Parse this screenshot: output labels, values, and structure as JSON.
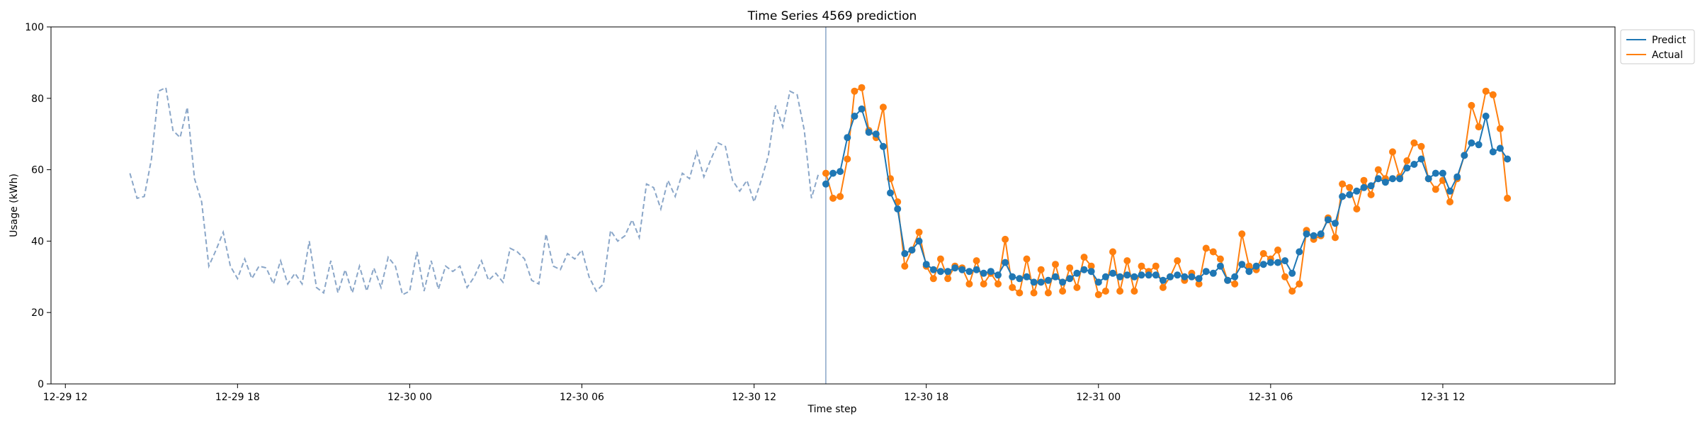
{
  "chart_data": {
    "type": "line",
    "title": "Time Series 4569 prediction",
    "xlabel": "Time step",
    "ylabel": "Usage (kWh)",
    "ylim": [
      0,
      100
    ],
    "y_ticks": [
      0,
      20,
      40,
      60,
      80,
      100
    ],
    "x_range": [
      "2023-12-29T11:30",
      "2023-12-31T18:00"
    ],
    "x_ticks": [
      {
        "t": "2023-12-29T12:00",
        "label": "12-29 12"
      },
      {
        "t": "2023-12-29T18:00",
        "label": "12-29 18"
      },
      {
        "t": "2023-12-30T00:00",
        "label": "12-30 00"
      },
      {
        "t": "2023-12-30T06:00",
        "label": "12-30 06"
      },
      {
        "t": "2023-12-30T12:00",
        "label": "12-30 12"
      },
      {
        "t": "2023-12-30T18:00",
        "label": "12-30 18"
      },
      {
        "t": "2023-12-31T00:00",
        "label": "12-31 00"
      },
      {
        "t": "2023-12-31T06:00",
        "label": "12-31 06"
      },
      {
        "t": "2023-12-31T12:00",
        "label": "12-31 12"
      }
    ],
    "forecast_start": "2023-12-30T14:30",
    "step_minutes": 15,
    "legend_position": "top-right, outside plot",
    "colors": {
      "history": "#8aa6c8",
      "predict": "#1f77b4",
      "actual": "#ff7f0e",
      "forecast_line": "#8aa6c8"
    },
    "series": [
      {
        "start": "2023-12-29T14:15",
        "style": "dashed",
        "values": [
          59,
          52,
          52.5,
          63,
          82,
          83,
          71,
          69,
          77.5,
          57.5,
          51,
          33,
          37.5,
          42.5,
          33,
          29.5,
          35,
          29.5,
          33,
          32.5,
          28,
          34.5,
          28,
          31,
          28,
          40,
          27,
          25.5,
          34.5,
          25.5,
          32,
          25.5,
          33,
          26,
          32.5,
          27,
          35.5,
          33,
          25,
          26,
          37,
          26,
          34.5,
          26.5,
          33,
          31.5,
          33,
          27,
          30,
          34.5,
          29,
          31,
          28.5,
          38,
          37,
          35,
          29,
          28,
          42,
          33,
          32,
          36.5,
          35,
          37.5,
          30,
          26,
          28,
          43,
          40,
          41.5,
          46,
          41,
          56,
          55,
          49,
          57,
          52.5,
          59,
          57.5,
          65,
          58,
          63,
          67.5,
          66.5,
          57,
          54,
          57,
          51,
          57,
          64,
          78,
          72,
          82,
          81,
          71,
          52,
          59
        ]
      },
      {
        "name": "Predict",
        "start": "2023-12-30T14:30",
        "style": "solid-markers",
        "values": [
          56,
          59,
          59.5,
          69,
          75,
          77,
          70.5,
          70,
          66.5,
          53.5,
          49,
          36.5,
          37.5,
          40,
          33.5,
          32,
          31.5,
          31.5,
          32.5,
          32,
          31.5,
          32,
          31,
          31.5,
          30.5,
          34,
          30,
          29.5,
          30,
          28.5,
          28.5,
          29,
          30,
          28.5,
          29.5,
          31,
          32,
          31.5,
          28.5,
          30,
          31,
          30,
          30.5,
          30,
          30.5,
          30.5,
          30.5,
          29,
          30,
          30.5,
          30,
          30,
          29.5,
          31.5,
          31,
          33,
          29,
          30,
          33.5,
          31.5,
          33,
          33.5,
          34,
          34,
          34.5,
          31,
          37,
          42,
          41.5,
          42,
          46,
          45,
          52.5,
          53,
          54,
          55,
          55.5,
          57.5,
          56.5,
          57.5,
          57.5,
          60.5,
          61.5,
          63,
          57.5,
          59,
          59,
          54,
          58,
          64,
          67.5,
          67,
          75,
          65,
          66,
          63
        ]
      },
      {
        "name": "Actual",
        "start": "2023-12-30T14:30",
        "style": "solid-markers",
        "values": [
          59,
          52,
          52.5,
          63,
          82,
          83,
          71,
          69,
          77.5,
          57.5,
          51,
          33,
          37.5,
          42.5,
          33,
          29.5,
          35,
          29.5,
          33,
          32.5,
          28,
          34.5,
          28,
          31,
          28,
          40.5,
          27,
          25.5,
          35,
          25.5,
          32,
          25.5,
          33.5,
          26,
          32.5,
          27,
          35.5,
          33,
          25,
          26,
          37,
          26,
          34.5,
          26,
          33,
          31.5,
          33,
          27,
          30,
          34.5,
          29,
          31,
          28,
          38,
          37,
          35,
          29,
          28,
          42,
          33,
          32,
          36.5,
          35,
          37.5,
          30,
          26,
          28,
          43,
          40.5,
          41.5,
          46.5,
          41,
          56,
          55,
          49,
          57,
          53,
          60,
          57.5,
          65,
          58,
          62.5,
          67.5,
          66.5,
          57.5,
          54.5,
          57,
          51,
          57.5,
          64,
          78,
          72,
          82,
          81,
          71.5,
          52
        ]
      }
    ]
  }
}
